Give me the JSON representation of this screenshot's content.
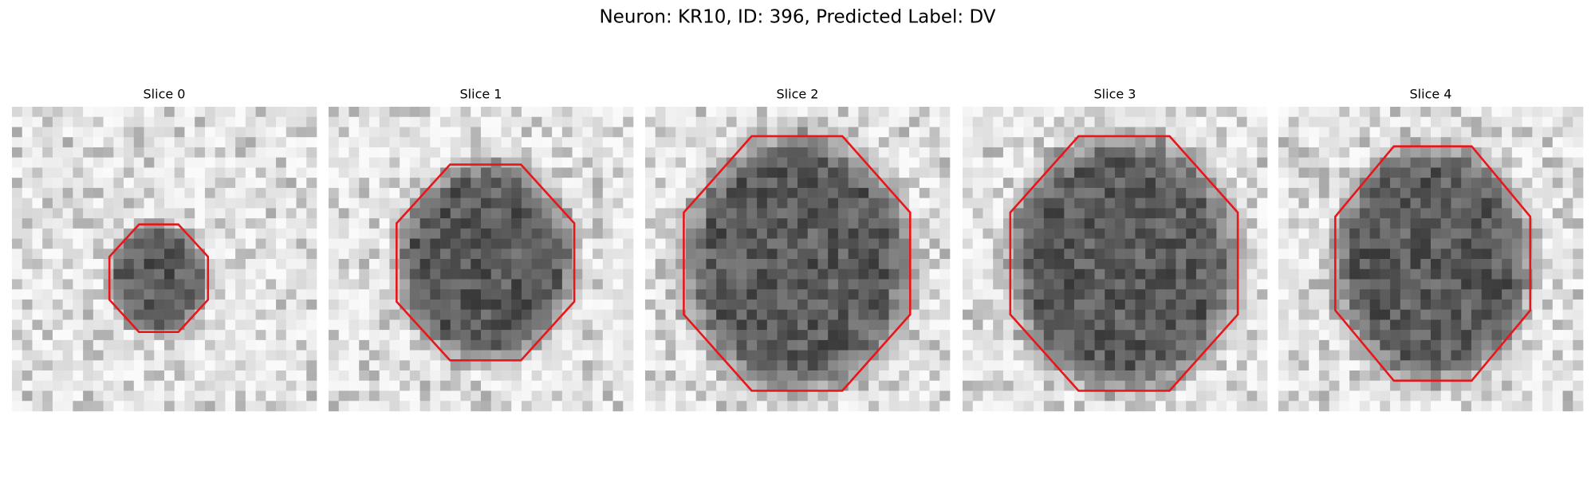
{
  "title": "Neuron: KR10, ID: 396, Predicted Label: DV",
  "panels": [
    {
      "title": "Slice 0"
    },
    {
      "title": "Slice 1"
    },
    {
      "title": "Slice 2"
    },
    {
      "title": "Slice 3"
    },
    {
      "title": "Slice 4"
    }
  ]
}
